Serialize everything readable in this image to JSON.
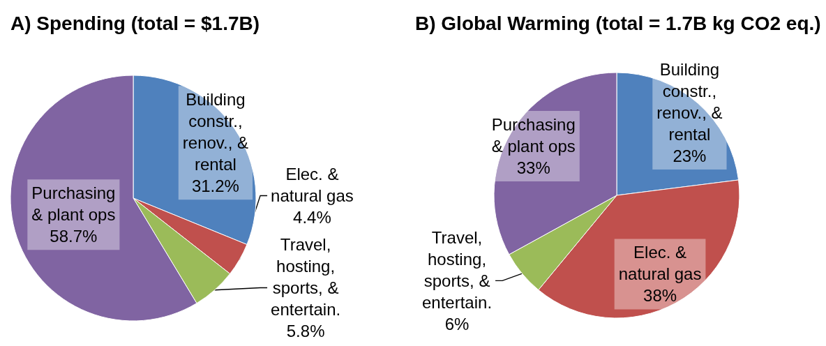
{
  "chart_data": [
    {
      "type": "pie",
      "title": "A) Spending (total = $1.7B)",
      "categories": [
        "Building constr., renov., & rental",
        "Elec. & natural gas",
        "Travel, hosting, sports, & entertain.",
        "Purchasing & plant ops"
      ],
      "values": [
        31.2,
        4.4,
        5.8,
        58.7
      ],
      "value_labels": [
        "31.2%",
        "4.4%",
        "5.8%",
        "58.7%"
      ],
      "colors": [
        "#4f81bd",
        "#c0504d",
        "#9bbb59",
        "#8064a2"
      ]
    },
    {
      "type": "pie",
      "title": "B) Global Warming (total = 1.7B kg CO2 eq.)",
      "categories": [
        "Building constr., renov., & rental",
        "Elec. & natural gas",
        "Travel, hosting, sports, & entertain.",
        "Purchasing & plant ops"
      ],
      "values": [
        23,
        38,
        6,
        33
      ],
      "value_labels": [
        "23%",
        "38%",
        "6%",
        "33%"
      ],
      "colors": [
        "#4f81bd",
        "#c0504d",
        "#9bbb59",
        "#8064a2"
      ]
    }
  ]
}
